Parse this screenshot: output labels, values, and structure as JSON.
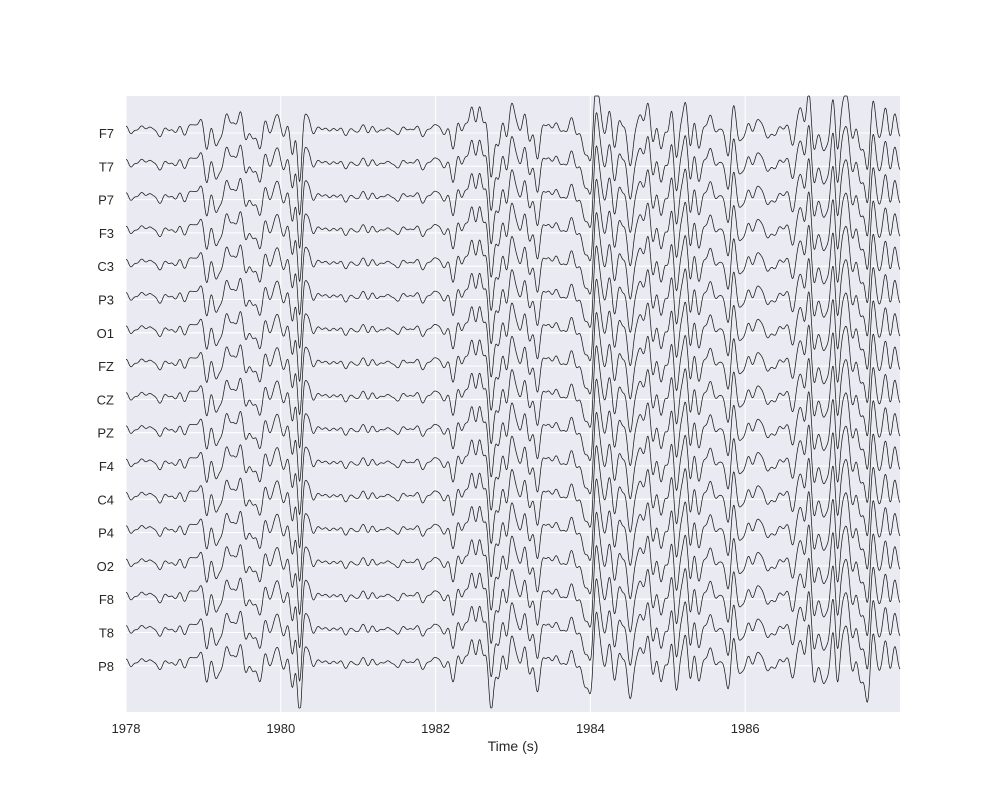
{
  "chart_data": {
    "type": "line",
    "title": "",
    "xlabel": "Time (s)",
    "ylabel": "",
    "xlim": [
      1978,
      1988
    ],
    "x_ticks": [
      1978,
      1980,
      1982,
      1984,
      1986
    ],
    "x_tick_labels": [
      "1978",
      "1980",
      "1982",
      "1984",
      "1986"
    ],
    "grid": true,
    "legend": "none",
    "style": "stacked multichannel EEG traces, all channels share the same waveform",
    "channels": [
      "F7",
      "T7",
      "P7",
      "F3",
      "C3",
      "P3",
      "O1",
      "FZ",
      "CZ",
      "PZ",
      "F4",
      "C4",
      "P4",
      "O2",
      "F8",
      "T8",
      "P8"
    ],
    "colors": {
      "background": "#eaeaf2",
      "grid": "#ffffff",
      "trace": "#1a1a1a",
      "text": "#262626"
    }
  }
}
